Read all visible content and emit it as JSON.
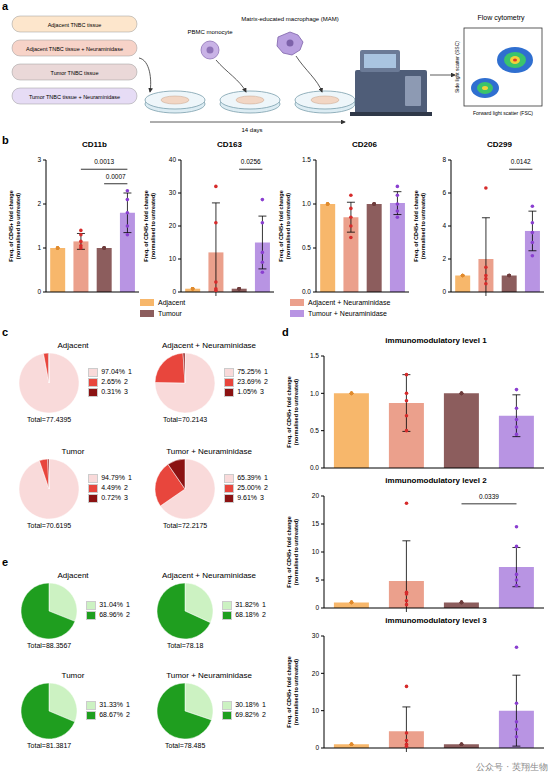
{
  "diagram": {
    "panel": "a",
    "samples": [
      "Adjacent TNBC tissue",
      "Adjacent TNBC tissue + Neuraminidase",
      "Tumor TNBC tissue",
      "Tumor TNBC tissue + Neuraminidase"
    ],
    "cell_1": "PBMC monocyte",
    "cell_2": "Matrix-educated macrophage (MAM)",
    "duration": "14 days",
    "instrument": "Flow cytometry",
    "plot_y": "Side light scatter (SSC)",
    "plot_x": "Forward light scatter (FSC)"
  },
  "watermark": "公众号 · 英翔生物",
  "chart_data": [
    {
      "panel": "b",
      "type": "bar",
      "title": "CD11b",
      "y_label": "Freq. of CD45+ fold change (normalised to untreated)",
      "categories": [
        "Adjacent",
        "Adjacent + Neuraminidase",
        "Tumour",
        "Tumour + Neuraminidase"
      ],
      "colors": [
        "#f7b76b",
        "#eba08c",
        "#8c5d5d",
        "#b894e3"
      ],
      "values": [
        1,
        1.15,
        1,
        1.8
      ],
      "errors": [
        0,
        0.18,
        0,
        0.45
      ],
      "points": [
        [
          1,
          1,
          1,
          1,
          1
        ],
        [
          1.0,
          1.05,
          1.15,
          1.3,
          1.4
        ],
        [
          1,
          1,
          1,
          1,
          1
        ],
        [
          1.3,
          1.5,
          1.8,
          2.1,
          2.3
        ]
      ],
      "ylim": [
        0,
        3
      ],
      "yticks": [
        0,
        1,
        2,
        3
      ],
      "annotations": [
        {
          "from": "Adjacent + Neuraminidase",
          "to": "Tumour + Neuraminidase",
          "label": "0.0013"
        },
        {
          "from": "Tumour",
          "to": "Tumour + Neuraminidase",
          "label": "0.0007"
        }
      ],
      "tick_labels": "y",
      "legend": "bottom"
    },
    {
      "panel": "b",
      "type": "bar",
      "title": "CD163",
      "y_label": "Freq. of CD45+ fold change (normalised to untreated)",
      "categories": [
        "Adjacent",
        "Adjacent + Neuraminidase",
        "Tumour",
        "Tumour + Neuraminidase"
      ],
      "colors": [
        "#f7b76b",
        "#eba08c",
        "#8c5d5d",
        "#b894e3"
      ],
      "values": [
        1,
        12,
        1,
        15
      ],
      "errors": [
        0,
        15,
        0,
        8
      ],
      "points": [
        [
          1,
          1,
          1,
          1,
          1
        ],
        [
          0.5,
          1,
          3,
          21,
          32
        ],
        [
          1,
          1,
          1,
          1,
          1
        ],
        [
          6,
          9,
          12,
          21,
          28
        ]
      ],
      "ylim": [
        0,
        40
      ],
      "yticks": [
        0,
        10,
        20,
        30,
        40
      ],
      "annotations": [
        {
          "from": "Tumour",
          "to": "Tumour + Neuraminidase",
          "label": "0.0256"
        }
      ],
      "tick_labels": "y"
    },
    {
      "panel": "b",
      "type": "bar",
      "title": "CD206",
      "y_label": "Freq. of CD45+ fold change (normalised to untreated)",
      "categories": [
        "Adjacent",
        "Adjacent + Neuraminidase",
        "Tumour",
        "Tumour + Neuraminidase"
      ],
      "colors": [
        "#f7b76b",
        "#eba08c",
        "#8c5d5d",
        "#b894e3"
      ],
      "values": [
        1,
        0.85,
        1,
        1.01
      ],
      "errors": [
        0,
        0.17,
        0,
        0.13
      ],
      "points": [
        [
          1,
          1,
          1,
          1,
          1
        ],
        [
          0.62,
          0.75,
          0.85,
          0.95,
          1.1
        ],
        [
          1,
          1,
          1,
          1,
          1
        ],
        [
          0.85,
          0.92,
          1.0,
          1.1,
          1.2
        ]
      ],
      "ylim": [
        0,
        1.5
      ],
      "yticks": [
        {
          "value": 0,
          "label": "0.0"
        },
        0.5,
        {
          "value": 1,
          "label": "1.0"
        },
        1.5
      ],
      "annotations": [],
      "tick_labels": "y"
    },
    {
      "panel": "b",
      "type": "bar",
      "title": "CD299",
      "y_label": "Freq. of CD45+ fold change (normalised to untreated)",
      "categories": [
        "Adjacent",
        "Adjacent + Neuraminidase",
        "Tumour",
        "Tumour + Neuraminidase"
      ],
      "colors": [
        "#f7b76b",
        "#eba08c",
        "#8c5d5d",
        "#b894e3"
      ],
      "values": [
        1,
        2,
        1,
        3.7
      ],
      "errors": [
        0,
        2.5,
        0,
        1.2
      ],
      "points": [
        [
          1,
          1,
          1,
          1,
          1
        ],
        [
          0.5,
          0.8,
          1,
          1.5,
          6.3
        ],
        [
          1,
          1,
          1,
          1,
          1
        ],
        [
          2.2,
          3.0,
          3.6,
          4.2,
          5.2
        ]
      ],
      "ylim": [
        0,
        8
      ],
      "yticks": [
        0,
        2,
        4,
        6,
        8
      ],
      "annotations": [
        {
          "from": "Tumour",
          "to": "Tumour + Neuraminidase",
          "label": "0.0142"
        }
      ],
      "tick_labels": "y"
    },
    {
      "panel": "c",
      "type": "pie",
      "title": "Adjacent",
      "subtitle": "Total=77.4395",
      "categories": [
        "1",
        "2",
        "3"
      ],
      "values": [
        97.04,
        2.65,
        0.31
      ],
      "value_labels": [
        "97.04%",
        "2.65%",
        "0.31%"
      ],
      "colors": [
        "#f9dada",
        "#e8463d",
        "#8b1212"
      ],
      "legend": "right"
    },
    {
      "panel": "c",
      "type": "pie",
      "title": "Adjacent + Neuraminidase",
      "subtitle": "Total=70.2143",
      "categories": [
        "1",
        "2",
        "3"
      ],
      "values": [
        75.25,
        23.69,
        1.05
      ],
      "value_labels": [
        "75.25%",
        "23.69%",
        "1.05%"
      ],
      "colors": [
        "#f9dada",
        "#e8463d",
        "#8b1212"
      ],
      "legend": "right"
    },
    {
      "panel": "c",
      "type": "pie",
      "title": "Tumor",
      "subtitle": "Total=70.6195",
      "categories": [
        "1",
        "2",
        "3"
      ],
      "values": [
        94.79,
        4.49,
        0.72
      ],
      "value_labels": [
        "94.79%",
        "4.49%",
        "0.72%"
      ],
      "colors": [
        "#f9dada",
        "#e8463d",
        "#8b1212"
      ],
      "legend": "right"
    },
    {
      "panel": "c",
      "type": "pie",
      "title": "Tumor + Neuraminidase",
      "subtitle": "Total=72.2175",
      "categories": [
        "1",
        "2",
        "3"
      ],
      "values": [
        65.39,
        25.0,
        9.61
      ],
      "value_labels": [
        "65.39%",
        "25.00%",
        "9.61%"
      ],
      "colors": [
        "#f9dada",
        "#e8463d",
        "#8b1212"
      ],
      "legend": "right"
    },
    {
      "panel": "d",
      "type": "bar",
      "title": "immunomodulatory level 1",
      "y_label": "Freq. of CD45+ fold change (normalised to untreated)",
      "categories": [
        "Adjacent",
        "Adjacent + Neuraminidase",
        "Tumour",
        "Tumour + Neuraminidase"
      ],
      "colors": [
        "#f7b76b",
        "#eba08c",
        "#8c5d5d",
        "#b894e3"
      ],
      "values": [
        1,
        0.87,
        1,
        0.7
      ],
      "errors": [
        0,
        0.38,
        0,
        0.28
      ],
      "points": [
        [
          1,
          1,
          1,
          1,
          1
        ],
        [
          0.5,
          0.7,
          0.9,
          1.0,
          1.25
        ],
        [
          1,
          1,
          1,
          1,
          1
        ],
        [
          0.45,
          0.55,
          0.65,
          0.8,
          1.05
        ]
      ],
      "ylim": [
        0,
        1.5
      ],
      "yticks": [
        {
          "value": 0,
          "label": "0.0"
        },
        0.5,
        {
          "value": 1,
          "label": "1.0"
        },
        1.5
      ],
      "annotations": [],
      "tick_labels": "y"
    },
    {
      "panel": "d",
      "type": "bar",
      "title": "immunomodulatory level 2",
      "y_label": "Freq. of CD45+ fold change (normalised to untreated)",
      "categories": [
        "Adjacent",
        "Adjacent + Neuraminidase",
        "Tumour",
        "Tumour + Neuraminidase"
      ],
      "colors": [
        "#f7b76b",
        "#eba08c",
        "#8c5d5d",
        "#b894e3"
      ],
      "values": [
        1,
        4.8,
        1,
        7.3
      ],
      "errors": [
        0,
        7.2,
        0,
        3.5
      ],
      "points": [
        [
          1,
          1,
          1,
          1,
          1
        ],
        [
          0.6,
          1.3,
          2.5,
          2.8,
          18.7
        ],
        [
          1,
          1,
          1,
          1,
          1
        ],
        [
          4,
          5,
          6,
          11,
          14.5
        ]
      ],
      "ylim": [
        0,
        20
      ],
      "yticks": [
        0,
        5,
        10,
        15,
        20
      ],
      "annotations": [
        {
          "from": "Tumour",
          "to": "Tumour + Neuraminidase",
          "label": "0.0339"
        }
      ],
      "tick_labels": "y"
    },
    {
      "panel": "d",
      "type": "bar",
      "title": "immunomodulatory level 3",
      "y_label": "Freq. of CD45+ fold change (normalised to untreated)",
      "categories": [
        "Adjacent",
        "Adjacent + Neuraminidase",
        "Tumour",
        "Tumour + Neuraminidase"
      ],
      "colors": [
        "#f7b76b",
        "#eba08c",
        "#8c5d5d",
        "#b894e3"
      ],
      "values": [
        1,
        4.5,
        1,
        10
      ],
      "errors": [
        0,
        6.5,
        0,
        9.5
      ],
      "points": [
        [
          1,
          1,
          1,
          1,
          1
        ],
        [
          0.5,
          1,
          2,
          4,
          16.5
        ],
        [
          1,
          1,
          1,
          1,
          1
        ],
        [
          3,
          5,
          7,
          12,
          27
        ]
      ],
      "ylim": [
        0,
        30
      ],
      "yticks": [
        0,
        10,
        20,
        30
      ],
      "annotations": [],
      "tick_labels": "y"
    },
    {
      "panel": "e",
      "type": "pie",
      "title": "Adjacent",
      "subtitle": "Total=88.3567",
      "categories": [
        "1",
        "2"
      ],
      "values": [
        31.04,
        68.96
      ],
      "value_labels": [
        "31.04%",
        "68.96%"
      ],
      "colors": [
        "#ccf2c2",
        "#1f9e1f"
      ],
      "legend": "right"
    },
    {
      "panel": "e",
      "type": "pie",
      "title": "Adjacent + Neuraminidase",
      "subtitle": "Total=78.18",
      "categories": [
        "1",
        "2"
      ],
      "values": [
        31.82,
        68.18
      ],
      "value_labels": [
        "31.82%",
        "68.18%"
      ],
      "colors": [
        "#ccf2c2",
        "#1f9e1f"
      ],
      "legend": "right"
    },
    {
      "panel": "e",
      "type": "pie",
      "title": "Tumor",
      "subtitle": "Total=81.3817",
      "categories": [
        "1",
        "2"
      ],
      "values": [
        31.33,
        68.67
      ],
      "value_labels": [
        "31.33%",
        "68.67%"
      ],
      "colors": [
        "#ccf2c2",
        "#1f9e1f"
      ],
      "legend": "right"
    },
    {
      "panel": "e",
      "type": "pie",
      "title": "Tumor + Neuraminidase",
      "subtitle": "Total=78.485",
      "categories": [
        "1",
        "2"
      ],
      "values": [
        30.18,
        69.82
      ],
      "value_labels": [
        "30.18%",
        "69.82%"
      ],
      "colors": [
        "#ccf2c2",
        "#1f9e1f"
      ],
      "legend": "right"
    }
  ]
}
